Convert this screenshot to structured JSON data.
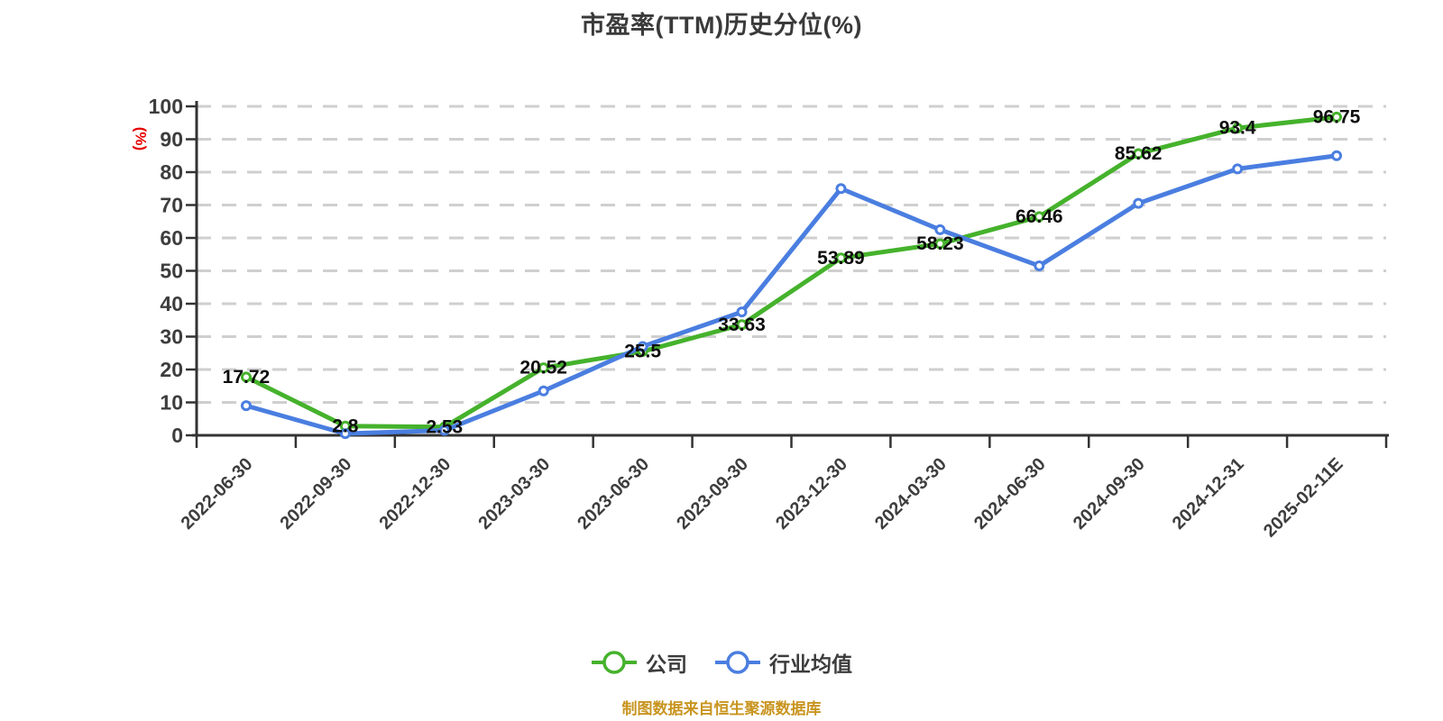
{
  "title": "市盈率(TTM)历史分位(%)",
  "y_axis_name": "(%)",
  "footer_note": "制图数据来自恒生聚源数据库",
  "colors": {
    "company": "#45b22c",
    "industry": "#4a7ee0",
    "grid": "#cfcfcf",
    "axis": "#333333",
    "tick_text": "#3d3d3d",
    "data_label": "#0d0d0d",
    "y_name": "#e60000",
    "footer": "#c8941f",
    "marker_fill": "#ffffff"
  },
  "chart_data": {
    "type": "line",
    "title": "市盈率(TTM)历史分位(%)",
    "xlabel": "",
    "ylabel": "(%)",
    "ylim": [
      0,
      100
    ],
    "y_ticks": [
      0,
      10,
      20,
      30,
      40,
      50,
      60,
      70,
      80,
      90,
      100
    ],
    "grid": "horizontal-dashed",
    "legend_position": "bottom",
    "categories": [
      "2022-06-30",
      "2022-09-30",
      "2022-12-30",
      "2023-03-30",
      "2023-06-30",
      "2023-09-30",
      "2023-12-30",
      "2024-03-30",
      "2024-06-30",
      "2024-09-30",
      "2024-12-31",
      "2025-02-11E"
    ],
    "series": [
      {
        "name": "公司",
        "color": "#45b22c",
        "point_labels": true,
        "values": [
          17.72,
          2.8,
          2.53,
          20.52,
          25.5,
          33.63,
          53.89,
          58.23,
          66.46,
          85.62,
          93.4,
          96.75
        ]
      },
      {
        "name": "行业均值",
        "color": "#4a7ee0",
        "point_labels": false,
        "values": [
          9,
          0.5,
          1.5,
          13.5,
          27,
          37.5,
          75,
          62.5,
          51.5,
          70.5,
          81,
          85
        ]
      }
    ]
  }
}
